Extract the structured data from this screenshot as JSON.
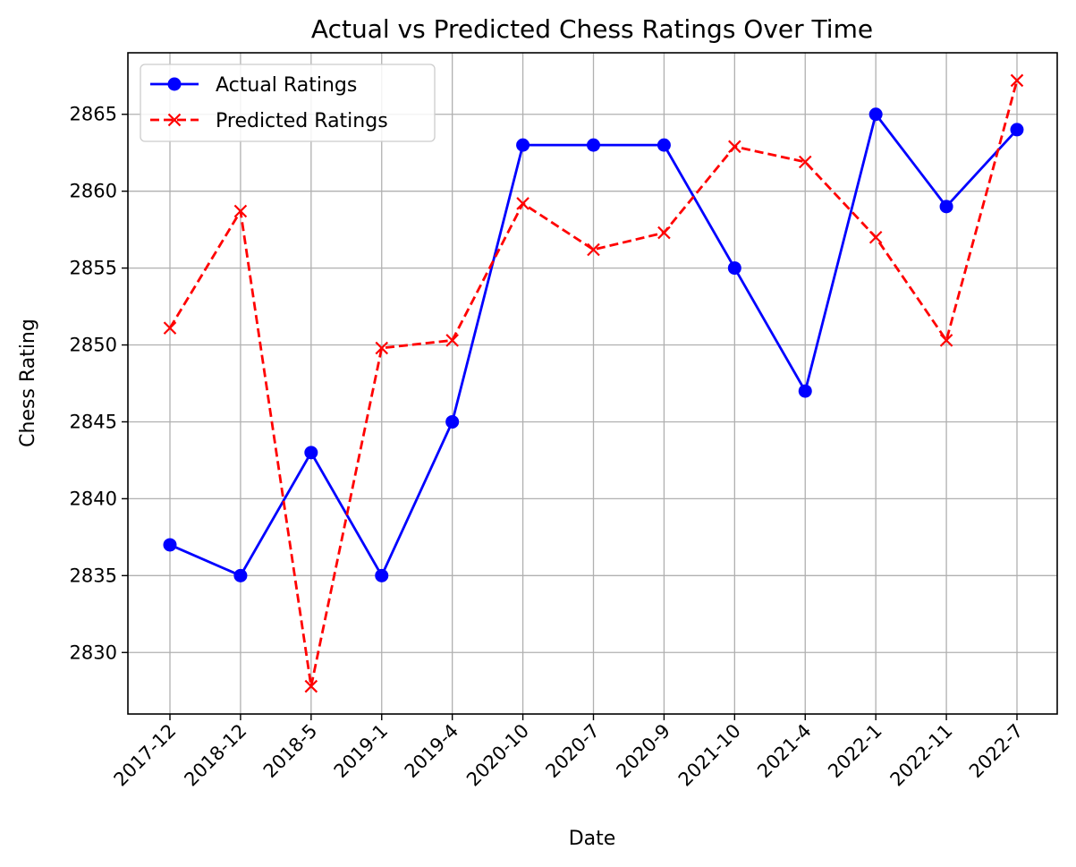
{
  "chart_data": {
    "type": "line",
    "title": "Actual vs Predicted Chess Ratings Over Time",
    "xlabel": "Date",
    "ylabel": "Chess Rating",
    "categories": [
      "2017-12",
      "2018-12",
      "2018-5",
      "2019-1",
      "2019-4",
      "2020-10",
      "2020-7",
      "2020-9",
      "2021-10",
      "2021-4",
      "2022-1",
      "2022-11",
      "2022-7"
    ],
    "yticks": [
      2830,
      2835,
      2840,
      2845,
      2850,
      2855,
      2860,
      2865
    ],
    "ylim": [
      2826,
      2869
    ],
    "grid": true,
    "legend_position": "top-left",
    "series": [
      {
        "name": "Actual Ratings",
        "color": "#0000ff",
        "style": "solid",
        "marker": "circle",
        "values": [
          2837,
          2835,
          2843,
          2835,
          2845,
          2863,
          2863,
          2863,
          2855,
          2847,
          2865,
          2859,
          2864
        ]
      },
      {
        "name": "Predicted Ratings",
        "color": "#ff0000",
        "style": "dashed",
        "marker": "x",
        "values": [
          2851.1,
          2858.7,
          2827.8,
          2849.8,
          2850.3,
          2859.2,
          2856.2,
          2857.3,
          2862.9,
          2861.9,
          2857.0,
          2850.3,
          2867.2
        ]
      }
    ]
  }
}
